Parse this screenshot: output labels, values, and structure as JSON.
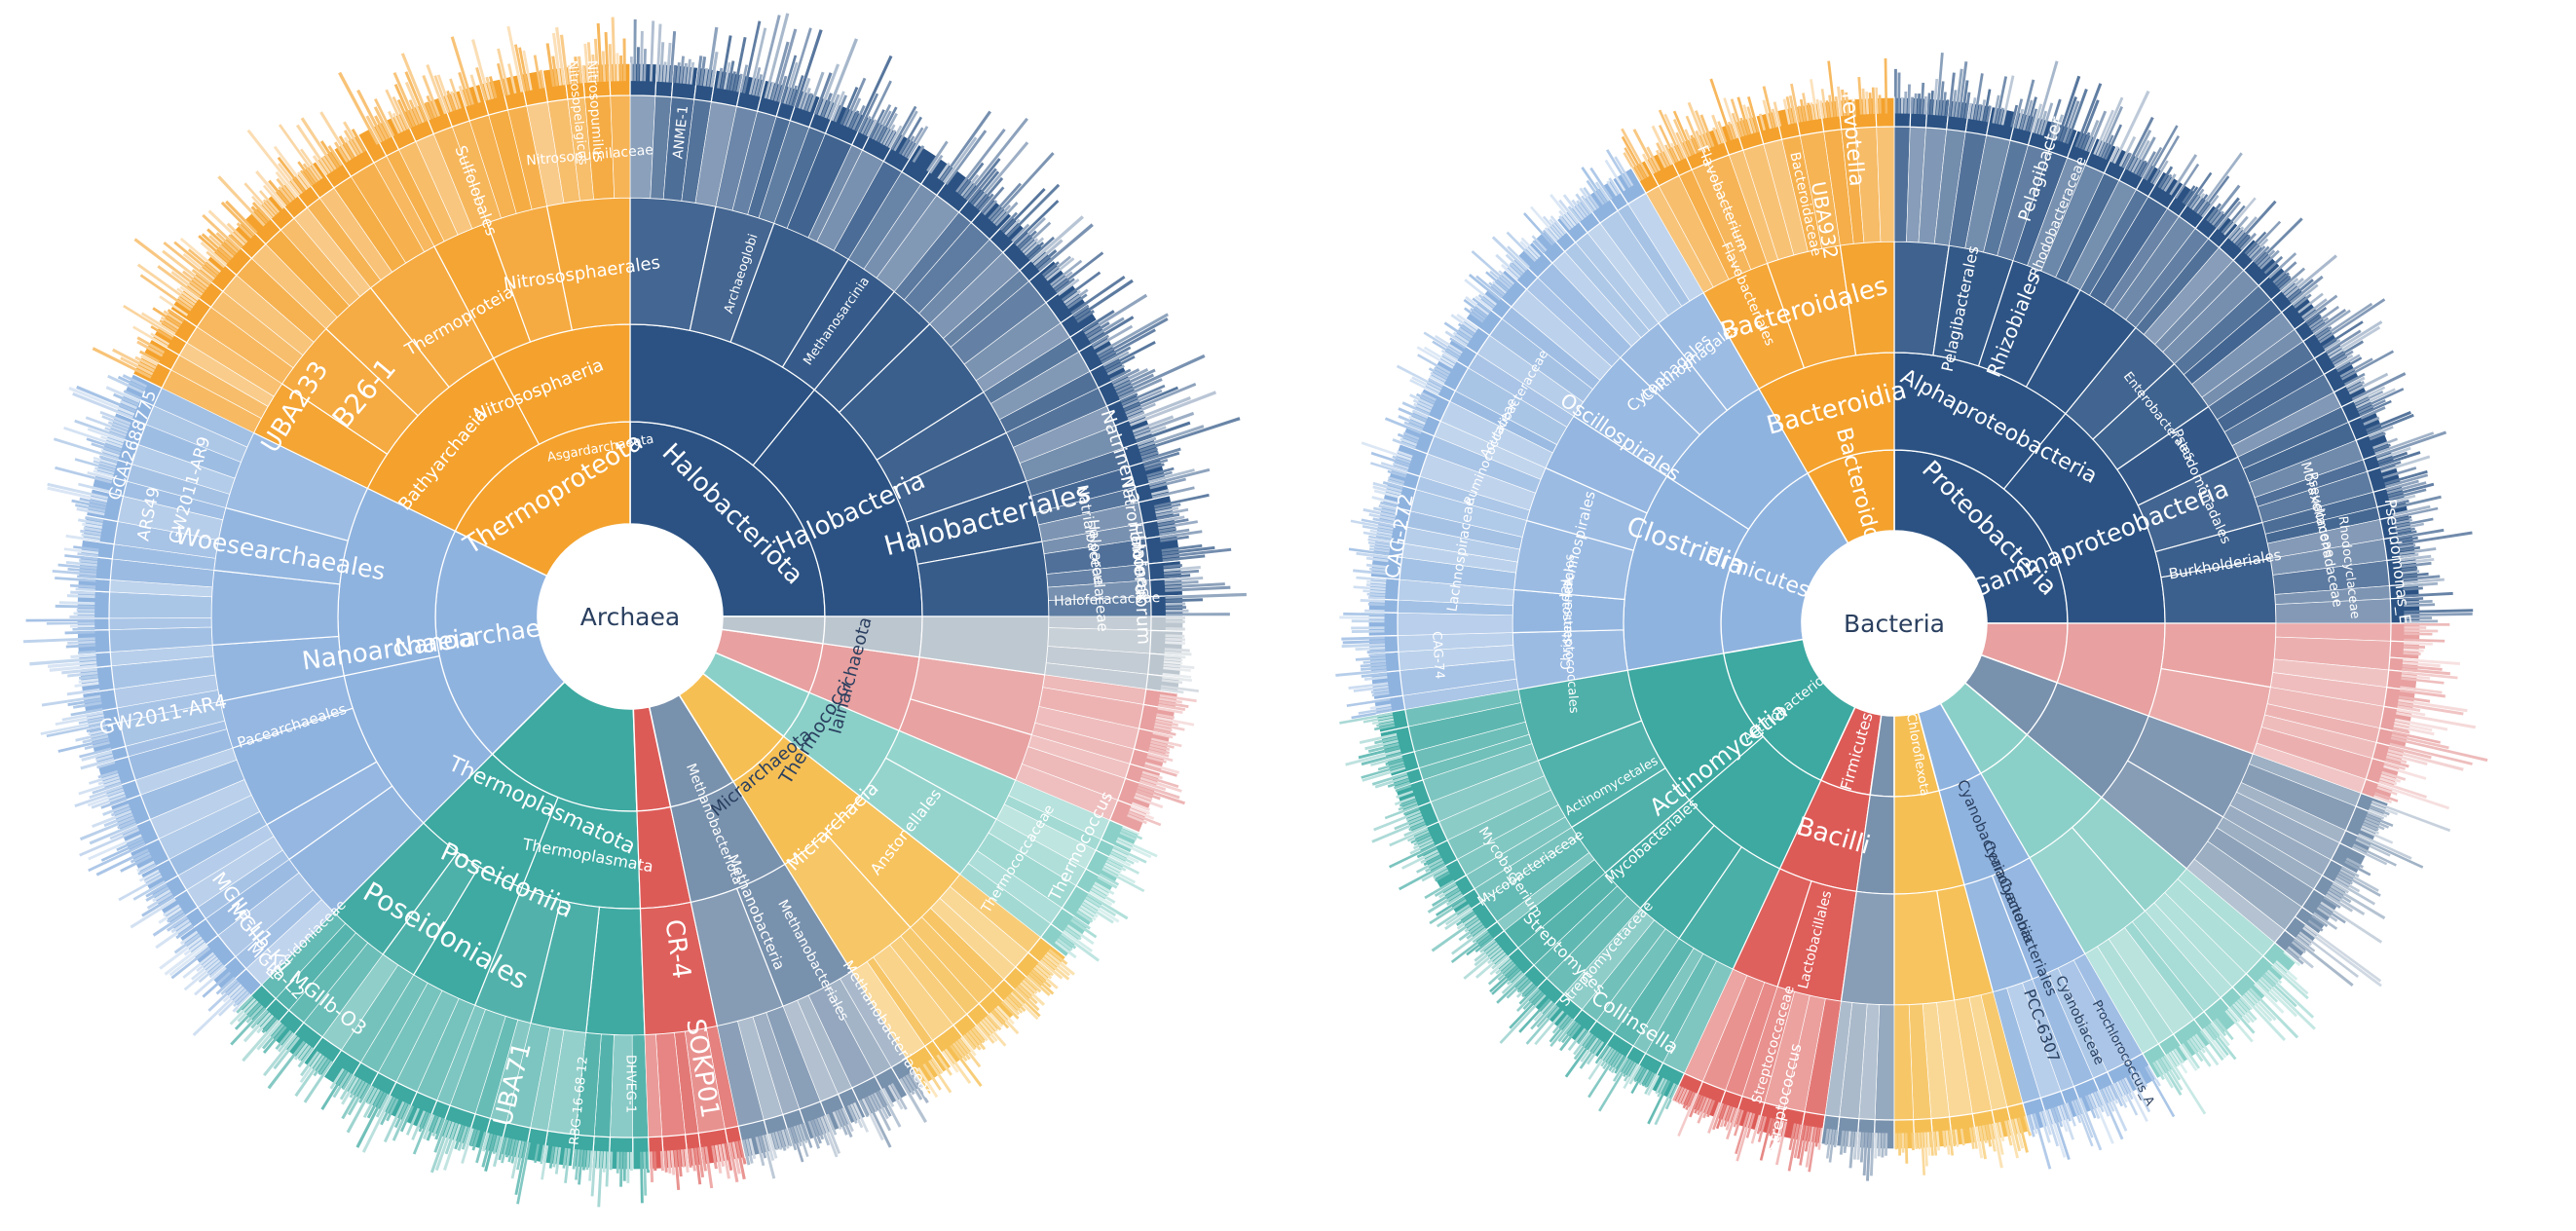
{
  "chart_data": [
    {
      "type": "sunburst",
      "root": "Archaea",
      "rings": [
        [
          "Halobacteriota",
          "Thermoproteota",
          "Nanoarchaeota",
          "Thermoplasmatota",
          "Asgardarchaeota",
          "Micrarchaeota",
          "Thermococci",
          "Iainarchaeota",
          "Methanobacteriota"
        ],
        [
          "Halobacteria",
          "Nitrososphaeria",
          "Bathyarchaeia",
          "Nanoarchaeia",
          "Poseidoniia",
          "Thermoplasmata",
          "CR-4",
          "Micrarchaeia",
          "Methanobacteria"
        ],
        [
          "Halobacteriales",
          "Methanosarcinia",
          "Archaeoglobi",
          "Nitrososphaerales",
          "Thermoproteia",
          "B26-1",
          "UBA233",
          "Woesearchaeales",
          "Pacearchaeales",
          "GW2011-AR4",
          "Poseidoniales",
          "SOKP01",
          "Anstonellales",
          "Methanobacteriales"
        ],
        [
          "Natrialbaceae",
          "Haloarculaceae",
          "Haloferacaceae",
          "Nitrosopumilaceae",
          "Sulfolobales",
          "Poseidoniaceae",
          "UBA71",
          "MGIIa-L1",
          "MGIIa-K1",
          "MGIIa-L2",
          "MGIIb-O3",
          "GW2011-AR9",
          "ARS49",
          "GCA-2688775",
          "Methanobacteriaceae",
          "Thermococcaceae"
        ],
        [
          "Halorubrum",
          "Haloferax",
          "Natronomonas",
          "Natrinema",
          "Nitrosopumilus",
          "Nitrosopelagicus",
          "Thermococcus",
          "ANME-1",
          "DHVEG-1",
          "RBG-16-68-12"
        ]
      ],
      "legend": "none"
    },
    {
      "type": "sunburst",
      "root": "Bacteria",
      "rings": [
        [
          "Proteobacteria",
          "Bacteroidota",
          "Firmicutes_A",
          "Actinobacteriota",
          "Firmicutes",
          "Cyanobacteria",
          "Chloroflexota"
        ],
        [
          "Alphaproteobacteria",
          "Gammaproteobacteria",
          "Bacteroidia",
          "Clostridia",
          "Actinomycetia",
          "Bacilli",
          "Cyanobacteriia"
        ],
        [
          "Rhizobiales",
          "Pelagibacterales",
          "Burkholderiales",
          "Pseudomonadales",
          "Enterobacterales",
          "Bacteroidales",
          "Flavobacteriales",
          "Chitinophagales",
          "Cytophagales",
          "Oscillospirales",
          "Lachnospirales",
          "Christensenellales",
          "Peptostreptococcales",
          "Mycobacteriales",
          "Actinomycetales",
          "Lactobacillales",
          "Cyanobacteriales"
        ],
        [
          "Rhodobacteraceae",
          "Pseudomonadaceae",
          "Moraxellaceae",
          "Bacteroidaceae",
          "Lachnospiraceae",
          "Ruminococcaceae",
          "Acutalibacteraceae",
          "Mycobacteriaceae",
          "Streptomycetaceae",
          "Streptococcaceae",
          "Cyanobiaceae",
          "Rhodocyclaceae"
        ],
        [
          "Prevotella",
          "UBA932",
          "Flavobacterium",
          "CAG-272",
          "CAG-74",
          "Pelagibacter",
          "Pseudomonas_E",
          "Mycobacterium",
          "Streptomyces",
          "Collinsella",
          "Streptococcus",
          "Prochlorococcus_A",
          "PCC-6307"
        ]
      ],
      "legend": "none"
    }
  ]
}
